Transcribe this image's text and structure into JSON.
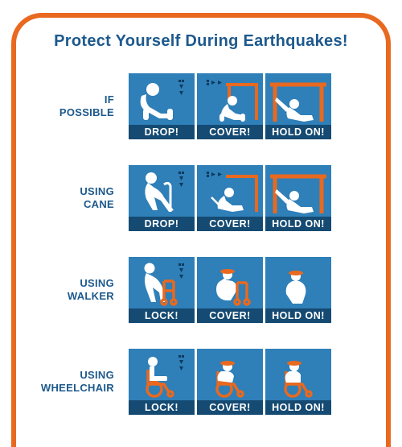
{
  "colors": {
    "frame": "#e8691f",
    "title": "#1d598d",
    "tile": "#2f7fb8",
    "capbg": "#154a72",
    "figure": "#ffffff",
    "accent": "#e8691f",
    "arrow": "#0d3a5c"
  },
  "title": "Protect Yourself During Earthquakes!",
  "rows": [
    {
      "key": "possible",
      "label": "IF\nPOSSIBLE",
      "tiles": [
        {
          "fig": "drop",
          "cap": "DROP!"
        },
        {
          "fig": "cover",
          "cap": "COVER!"
        },
        {
          "fig": "holdon",
          "cap": "HOLD ON!"
        }
      ]
    },
    {
      "key": "cane",
      "label": "USING\nCANE",
      "tiles": [
        {
          "fig": "drop_cane",
          "cap": "DROP!"
        },
        {
          "fig": "cover_cane",
          "cap": "COVER!"
        },
        {
          "fig": "holdon",
          "cap": "HOLD ON!"
        }
      ]
    },
    {
      "key": "walker",
      "label": "USING\nWALKER",
      "tiles": [
        {
          "fig": "lock_walker",
          "cap": "LOCK!"
        },
        {
          "fig": "cover_walker",
          "cap": "COVER!"
        },
        {
          "fig": "hold_walker",
          "cap": "HOLD ON!"
        }
      ]
    },
    {
      "key": "wheelchair",
      "label": "USING\nWHEELCHAIR",
      "tiles": [
        {
          "fig": "lock_chair",
          "cap": "LOCK!"
        },
        {
          "fig": "cover_chair",
          "cap": "COVER!"
        },
        {
          "fig": "hold_chair",
          "cap": "HOLD ON!"
        }
      ]
    }
  ],
  "layout": {
    "tile_size": 82,
    "tile_gap": 3,
    "label_width": 112,
    "row_gap": 32,
    "frame_radius": 38,
    "frame_border": 6
  }
}
